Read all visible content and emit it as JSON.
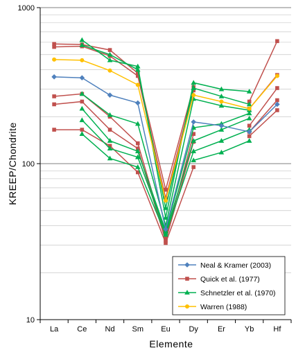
{
  "chart_data": {
    "type": "line",
    "xlabel": "Elemente",
    "ylabel": "KREEP/Chondrite",
    "yscale": "log",
    "ylim": [
      10,
      1000
    ],
    "ytick_labels": [
      "10",
      "100",
      "1000"
    ],
    "categories": [
      "La",
      "Ce",
      "Nd",
      "Sm",
      "Eu",
      "Dy",
      "Er",
      "Yb",
      "Hf"
    ],
    "grid": "horizontal",
    "legend_position": "bottom-right",
    "legend": [
      {
        "label": "Neal & Kramer (2003)",
        "color": "#4f81bd",
        "marker": "diamond"
      },
      {
        "label": "Quick et al. (1977)",
        "color": "#c0504d",
        "marker": "square"
      },
      {
        "label": "Schnetzler et al. (1970)",
        "color": "#00b050",
        "marker": "triangle"
      },
      {
        "label": "Warren (1988)",
        "color": "#ffc000",
        "marker": "circle"
      }
    ],
    "series": [
      {
        "group": 0,
        "values": [
          360,
          355,
          275,
          245,
          38,
          185,
          175,
          160,
          240
        ]
      },
      {
        "group": 1,
        "values": [
          585,
          580,
          535,
          380,
          68,
          310,
          null,
          250,
          610
        ]
      },
      {
        "group": 1,
        "values": [
          560,
          565,
          490,
          365,
          60,
          295,
          null,
          225,
          370
        ]
      },
      {
        "group": 1,
        "values": [
          270,
          280,
          200,
          135,
          33,
          155,
          null,
          175,
          305
        ]
      },
      {
        "group": 1,
        "values": [
          240,
          250,
          165,
          125,
          32,
          138,
          null,
          160,
          255
        ]
      },
      {
        "group": 1,
        "values": [
          165,
          165,
          130,
          88,
          31,
          95,
          null,
          150,
          220
        ]
      },
      {
        "group": 2,
        "values": [
          null,
          620,
          460,
          420,
          45,
          330,
          300,
          290,
          null
        ]
      },
      {
        "group": 2,
        "values": [
          null,
          575,
          500,
          400,
          52,
          305,
          270,
          240,
          null
        ]
      },
      {
        "group": 2,
        "values": [
          null,
          280,
          205,
          180,
          40,
          260,
          235,
          220,
          null
        ]
      },
      {
        "group": 2,
        "values": [
          null,
          225,
          140,
          120,
          37,
          170,
          180,
          210,
          null
        ]
      },
      {
        "group": 2,
        "values": [
          null,
          190,
          125,
          110,
          36,
          140,
          165,
          195,
          null
        ]
      },
      {
        "group": 2,
        "values": [
          null,
          155,
          108,
          95,
          35,
          120,
          140,
          165,
          null
        ]
      },
      {
        "group": 2,
        "values": [
          null,
          null,
          null,
          null,
          null,
          105,
          118,
          140,
          null
        ]
      },
      {
        "group": 3,
        "values": [
          465,
          460,
          395,
          320,
          58,
          275,
          250,
          225,
          365
        ]
      }
    ]
  }
}
